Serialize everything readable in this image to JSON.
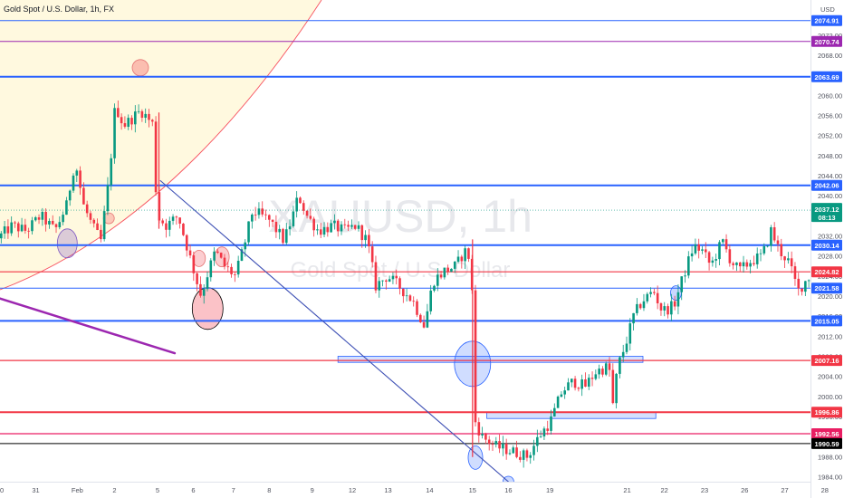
{
  "header": {
    "title": "Gold Spot / U.S. Dollar, 1h, FX",
    "currency": "USD"
  },
  "watermark": {
    "symbol": "XAUUSD, 1h",
    "name": "Gold Spot / U.S. Dollar"
  },
  "chart_data": {
    "type": "candlestick",
    "y_axis": {
      "range": [
        1983,
        2079
      ],
      "ticks": [
        "2072.00",
        "2068.00",
        "2064.00",
        "2060.00",
        "2056.00",
        "2052.00",
        "2048.00",
        "2044.00",
        "2040.00",
        "2036.00",
        "2032.00",
        "2028.00",
        "2024.00",
        "2020.00",
        "2016.00",
        "2012.00",
        "2008.00",
        "2004.00",
        "2000.00",
        "1996.00",
        "1992.00",
        "1988.00",
        "1984.00"
      ]
    },
    "x_axis": {
      "range": [
        0,
        28.3
      ],
      "ticks": [
        {
          "t": 0,
          "label": "30"
        },
        {
          "t": 1.25,
          "label": "31"
        },
        {
          "t": 2.7,
          "label": "Feb"
        },
        {
          "t": 4.0,
          "label": "2"
        },
        {
          "t": 5.5,
          "label": "5"
        },
        {
          "t": 6.75,
          "label": "6"
        },
        {
          "t": 8.15,
          "label": "7"
        },
        {
          "t": 9.4,
          "label": "8"
        },
        {
          "t": 10.9,
          "label": "9"
        },
        {
          "t": 12.3,
          "label": "12"
        },
        {
          "t": 13.55,
          "label": "13"
        },
        {
          "t": 15.0,
          "label": "14"
        },
        {
          "t": 16.5,
          "label": "15"
        },
        {
          "t": 17.75,
          "label": "16"
        },
        {
          "t": 19.2,
          "label": "19"
        },
        {
          "t": 21.9,
          "label": "21"
        },
        {
          "t": 23.2,
          "label": "22"
        },
        {
          "t": 24.6,
          "label": "23"
        },
        {
          "t": 26.0,
          "label": "26"
        },
        {
          "t": 27.4,
          "label": "27"
        },
        {
          "t": 28.8,
          "label": "28"
        }
      ]
    },
    "last_price": {
      "value": 2037.12,
      "label": "2037.12",
      "countdown": "08:13",
      "color": "#089981"
    },
    "horizontal_levels": [
      {
        "value": 2074.91,
        "label": "2074.91",
        "color": "#2962ff",
        "width": 1
      },
      {
        "value": 2070.74,
        "label": "2070.74",
        "color": "#9c27b0",
        "width": 1
      },
      {
        "value": 2063.69,
        "label": "2063.69",
        "color": "#2962ff",
        "width": 2
      },
      {
        "value": 2042.06,
        "label": "2042.06",
        "color": "#2962ff",
        "width": 2
      },
      {
        "value": 2030.14,
        "label": "2030.14",
        "color": "#2962ff",
        "width": 2
      },
      {
        "value": 2024.82,
        "label": "2024.82",
        "color": "#f23645",
        "width": 1.2
      },
      {
        "value": 2021.58,
        "label": "2021.58",
        "color": "#2962ff",
        "width": 1
      },
      {
        "value": 2015.05,
        "label": "2015.05",
        "color": "#2962ff",
        "width": 2
      },
      {
        "value": 2007.16,
        "label": "2007.16",
        "color": "#f23645",
        "width": 1.2
      },
      {
        "value": 1996.86,
        "label": "1996.86",
        "color": "#f23645",
        "width": 2
      },
      {
        "value": 1992.56,
        "label": "1992.56",
        "color": "#e91e63",
        "width": 1.2
      },
      {
        "value": 1990.59,
        "label": "1990.59",
        "color": "#000000",
        "width": 1
      }
    ],
    "anchors": [
      [
        0.0,
        2031.5
      ],
      [
        0.5,
        2034
      ],
      [
        1.0,
        2033
      ],
      [
        1.5,
        2036
      ],
      [
        2.0,
        2033
      ],
      [
        2.4,
        2038
      ],
      [
        2.7,
        2047
      ],
      [
        3.0,
        2038
      ],
      [
        3.3,
        2034
      ],
      [
        3.6,
        2031
      ],
      [
        3.9,
        2044
      ],
      [
        4.1,
        2058
      ],
      [
        4.4,
        2054
      ],
      [
        5.0,
        2057
      ],
      [
        5.45,
        2054
      ],
      [
        5.55,
        2036
      ],
      [
        5.9,
        2034
      ],
      [
        6.3,
        2036
      ],
      [
        6.8,
        2026
      ],
      [
        7.1,
        2020
      ],
      [
        7.3,
        2024
      ],
      [
        7.6,
        2029
      ],
      [
        7.9,
        2026
      ],
      [
        8.3,
        2024
      ],
      [
        8.6,
        2030
      ],
      [
        8.9,
        2037
      ],
      [
        9.5,
        2035
      ],
      [
        10.0,
        2031
      ],
      [
        10.3,
        2036
      ],
      [
        10.5,
        2040
      ],
      [
        10.8,
        2036
      ],
      [
        11.2,
        2033
      ],
      [
        11.7,
        2034
      ],
      [
        12.1,
        2033
      ],
      [
        12.5,
        2034
      ],
      [
        12.9,
        2031
      ],
      [
        13.2,
        2022
      ],
      [
        13.6,
        2024
      ],
      [
        14.0,
        2022
      ],
      [
        14.5,
        2019
      ],
      [
        14.9,
        2014
      ],
      [
        15.2,
        2023
      ],
      [
        15.6,
        2025
      ],
      [
        16.0,
        2026
      ],
      [
        16.3,
        2029
      ],
      [
        16.55,
        2027
      ],
      [
        16.6,
        1996
      ],
      [
        16.9,
        1992
      ],
      [
        17.4,
        1990
      ],
      [
        18.0,
        1989
      ],
      [
        18.5,
        1988
      ],
      [
        18.9,
        1992
      ],
      [
        19.3,
        1995
      ],
      [
        19.7,
        2001
      ],
      [
        20.1,
        2003
      ],
      [
        20.5,
        2002
      ],
      [
        20.9,
        2005
      ],
      [
        21.35,
        2006
      ],
      [
        21.45,
        1997
      ],
      [
        21.65,
        2006
      ],
      [
        21.9,
        2010
      ],
      [
        22.2,
        2016
      ],
      [
        22.5,
        2019
      ],
      [
        22.9,
        2021
      ],
      [
        23.2,
        2017
      ],
      [
        23.6,
        2018
      ],
      [
        24.0,
        2025
      ],
      [
        24.3,
        2030
      ],
      [
        24.6,
        2029
      ],
      [
        24.9,
        2026
      ],
      [
        25.3,
        2031
      ],
      [
        25.6,
        2027
      ],
      [
        25.9,
        2025
      ],
      [
        26.3,
        2027
      ],
      [
        26.7,
        2028
      ],
      [
        27.0,
        2033
      ],
      [
        27.3,
        2029
      ],
      [
        27.6,
        2027
      ],
      [
        27.95,
        2021
      ],
      [
        28.2,
        2023
      ],
      [
        28.5,
        2025
      ],
      [
        28.75,
        2018
      ],
      [
        28.9,
        2025
      ],
      [
        29.1,
        2037.12
      ]
    ],
    "circles": [
      {
        "t": 4.9,
        "p": 2065.5,
        "rx": 9,
        "ry": 9,
        "stroke": "#e57373",
        "fill": "rgba(242,54,69,0.30)"
      },
      {
        "t": 2.35,
        "p": 2030.5,
        "rx": 11,
        "ry": 16,
        "stroke": "#7e57c2",
        "fill": "rgba(126,87,194,0.28)"
      },
      {
        "t": 3.8,
        "p": 2035.5,
        "rx": 6,
        "ry": 6,
        "stroke": "#e57373",
        "fill": "rgba(242,54,69,0.25)"
      },
      {
        "t": 6.95,
        "p": 2027.5,
        "rx": 7,
        "ry": 9,
        "stroke": "#e57373",
        "fill": "rgba(242,54,69,0.25)"
      },
      {
        "t": 7.75,
        "p": 2027.8,
        "rx": 8,
        "ry": 11,
        "stroke": "#e57373",
        "fill": "rgba(242,54,69,0.25)"
      },
      {
        "t": 7.25,
        "p": 2017.5,
        "rx": 17,
        "ry": 23,
        "stroke": "#000000",
        "fill": "rgba(242,54,69,0.30)"
      },
      {
        "t": 16.5,
        "p": 2006.5,
        "rx": 20,
        "ry": 25,
        "stroke": "#2962ff",
        "fill": "rgba(41,98,255,0.22)"
      },
      {
        "t": 16.6,
        "p": 1987.8,
        "rx": 8,
        "ry": 13,
        "stroke": "#2962ff",
        "fill": "rgba(41,98,255,0.22)"
      },
      {
        "t": 17.75,
        "p": 1983.0,
        "rx": 6,
        "ry": 6,
        "stroke": "#2962ff",
        "fill": "rgba(41,98,255,0.25)"
      },
      {
        "t": 23.6,
        "p": 2020.6,
        "rx": 6,
        "ry": 8,
        "stroke": "#2962ff",
        "fill": "rgba(41,98,255,0.25)"
      }
    ],
    "rectangles": [
      {
        "t1": 11.8,
        "t2": 22.45,
        "p1": 2008.0,
        "p2": 2006.8
      },
      {
        "t1": 17.0,
        "t2": 22.9,
        "p1": 1996.8,
        "p2": 1995.6
      }
    ],
    "lines": [
      {
        "t1": 5.6,
        "p1": 2043.0,
        "t2": 17.75,
        "p2": 1983.0,
        "color": "#3f51b5",
        "width": 1.1
      },
      {
        "t1": 0,
        "p1": 2019.5,
        "t2": 6.1,
        "p2": 2008.6,
        "color": "#9c27b0",
        "width": 2.5
      },
      {
        "t1": 16.5,
        "p1": 2031.2,
        "t2": 16.5,
        "p2": 1988.0,
        "color": "#f23645",
        "width": 1.2
      },
      {
        "t1": 5.55,
        "p1": 2056.5,
        "t2": 5.55,
        "p2": 2033.5,
        "color": "#f23645",
        "width": 1.2
      }
    ],
    "arrows": [
      {
        "t1": 29.3,
        "p1": 2041.5,
        "t2": 30.2,
        "p2": 2063.0,
        "color": "#f7a21b",
        "width": 1.2
      },
      {
        "t1": 29.4,
        "p1": 2041.5,
        "t2": 30.1,
        "p2": 2025.0,
        "color": "#000000",
        "width": 1.2
      }
    ]
  }
}
